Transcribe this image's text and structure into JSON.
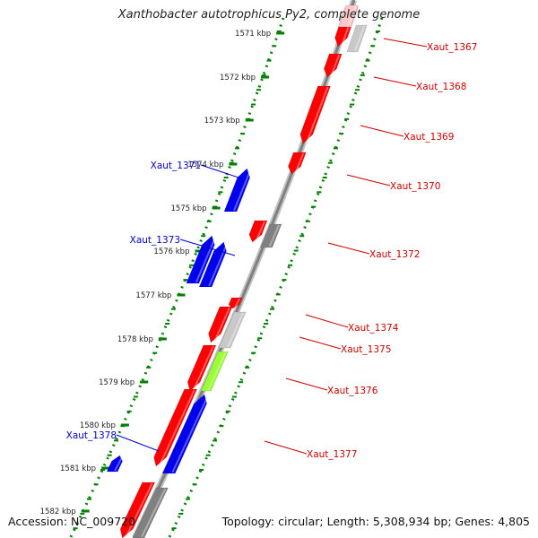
{
  "title": "Xanthobacter autotrophicus Py2, complete genome",
  "footer": {
    "accession": "Accession: NC_009720",
    "summary": "Topology: circular; Length: 5,308,934 bp; Genes: 4,805"
  },
  "colors": {
    "forward_gene": "#ff0000",
    "reverse_gene": "#0000ee",
    "gene_label_forward": "#cc0000",
    "gene_label_reverse": "#0000cc",
    "rna": "#c8c8c8",
    "pseudo": "#808080",
    "other": "#99ff33",
    "backbone": "#808080",
    "ticks": "#008000"
  },
  "kbp_ticks": [
    {
      "label": "1571 kbp",
      "kbp": 1571
    },
    {
      "label": "1572 kbp",
      "kbp": 1572
    },
    {
      "label": "1573 kbp",
      "kbp": 1573
    },
    {
      "label": "1574 kbp",
      "kbp": 1574
    },
    {
      "label": "1575 kbp",
      "kbp": 1575
    },
    {
      "label": "1576 kbp",
      "kbp": 1576
    },
    {
      "label": "1577 kbp",
      "kbp": 1577
    },
    {
      "label": "1578 kbp",
      "kbp": 1578
    },
    {
      "label": "1579 kbp",
      "kbp": 1579
    },
    {
      "label": "1580 kbp",
      "kbp": 1580
    },
    {
      "label": "1581 kbp",
      "kbp": 1581
    },
    {
      "label": "1582 kbp",
      "kbp": 1582
    }
  ],
  "gene_labels": [
    {
      "name": "Xaut_1367",
      "strand": "forward"
    },
    {
      "name": "Xaut_1368",
      "strand": "forward"
    },
    {
      "name": "Xaut_1369",
      "strand": "forward"
    },
    {
      "name": "Xaut_1370",
      "strand": "forward"
    },
    {
      "name": "Xaut_1371",
      "strand": "reverse"
    },
    {
      "name": "Xaut_1372",
      "strand": "forward"
    },
    {
      "name": "Xaut_1373",
      "strand": "reverse"
    },
    {
      "name": "Xaut_1374",
      "strand": "forward"
    },
    {
      "name": "Xaut_1375",
      "strand": "forward"
    },
    {
      "name": "Xaut_1376",
      "strand": "forward"
    },
    {
      "name": "Xaut_1377",
      "strand": "forward"
    },
    {
      "name": "Xaut_1378",
      "strand": "reverse"
    }
  ]
}
